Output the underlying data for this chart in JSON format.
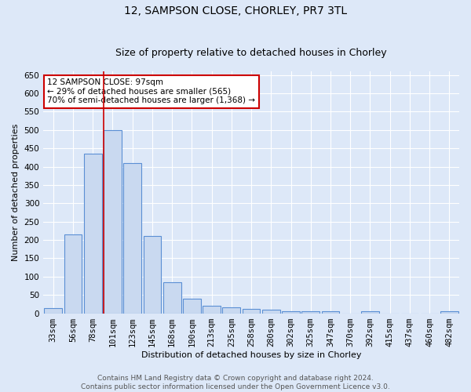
{
  "title": "12, SAMPSON CLOSE, CHORLEY, PR7 3TL",
  "subtitle": "Size of property relative to detached houses in Chorley",
  "xlabel": "Distribution of detached houses by size in Chorley",
  "ylabel": "Number of detached properties",
  "bar_labels": [
    "33sqm",
    "56sqm",
    "78sqm",
    "101sqm",
    "123sqm",
    "145sqm",
    "168sqm",
    "190sqm",
    "213sqm",
    "235sqm",
    "258sqm",
    "280sqm",
    "302sqm",
    "325sqm",
    "347sqm",
    "370sqm",
    "392sqm",
    "415sqm",
    "437sqm",
    "460sqm",
    "482sqm"
  ],
  "bar_values": [
    15,
    215,
    435,
    500,
    410,
    210,
    85,
    40,
    20,
    17,
    12,
    10,
    5,
    5,
    5,
    0,
    5,
    0,
    0,
    0,
    5
  ],
  "bar_color": "#c9d9f0",
  "bar_edge_color": "#5b8fd4",
  "vline_bar_index": 3,
  "vline_color": "#cc0000",
  "annotation_text": "12 SAMPSON CLOSE: 97sqm\n← 29% of detached houses are smaller (565)\n70% of semi-detached houses are larger (1,368) →",
  "annotation_box_color": "#ffffff",
  "annotation_box_edge": "#cc0000",
  "ylim": [
    0,
    660
  ],
  "yticks": [
    0,
    50,
    100,
    150,
    200,
    250,
    300,
    350,
    400,
    450,
    500,
    550,
    600,
    650
  ],
  "footer": "Contains HM Land Registry data © Crown copyright and database right 2024.\nContains public sector information licensed under the Open Government Licence v3.0.",
  "bg_color": "#dde8f8",
  "grid_color": "#ffffff",
  "title_fontsize": 10,
  "subtitle_fontsize": 9,
  "axis_label_fontsize": 8,
  "tick_fontsize": 7.5,
  "footer_fontsize": 6.5
}
